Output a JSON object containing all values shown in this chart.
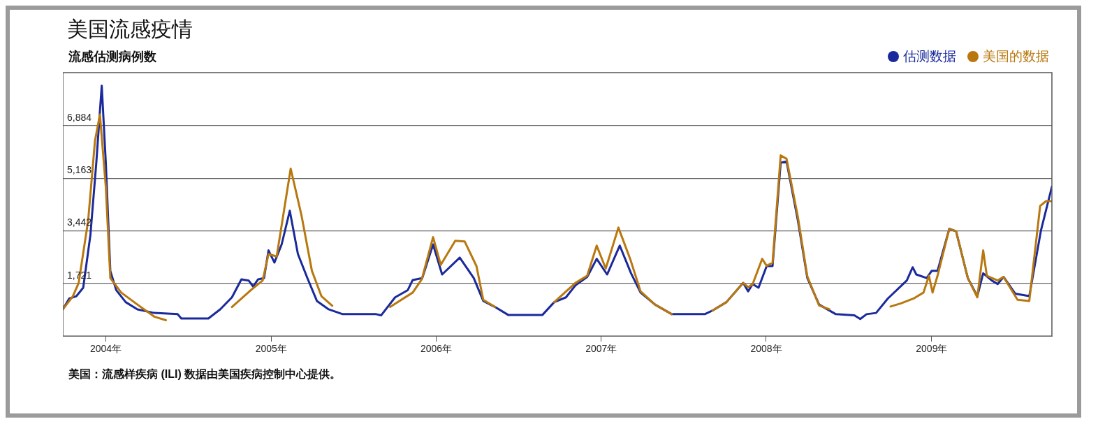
{
  "chart_data": {
    "type": "line",
    "title": "美国流感疫情",
    "ylabel": "流感估测病例数",
    "annotations": [
      "美国：流感样疾病 (ILI) 数据由美国疾病控制中心提供。"
    ],
    "xlim": [
      "2003-09-28",
      "2009-09-24"
    ],
    "xticks": [
      {
        "value": "2004-01-01",
        "label": "2004年"
      },
      {
        "value": "2005-01-01",
        "label": "2005年"
      },
      {
        "value": "2006-01-01",
        "label": "2006年"
      },
      {
        "value": "2007-01-01",
        "label": "2007年"
      },
      {
        "value": "2008-01-01",
        "label": "2008年"
      },
      {
        "value": "2009-01-01",
        "label": "2009年"
      }
    ],
    "ylim": [
      0,
      8620
    ],
    "yticks": [
      {
        "value": 1721,
        "label": "1,721"
      },
      {
        "value": 3442,
        "label": "3,442"
      },
      {
        "value": 5163,
        "label": "5,163"
      },
      {
        "value": 6884,
        "label": "6,884"
      }
    ],
    "grid": "y",
    "legend": "top right",
    "marker": "none",
    "line_style": "solid",
    "series": [
      {
        "name": "估测数据",
        "color": "#1a2a9c",
        "x": [
          "2003-09-28",
          "2003-10-12",
          "2003-10-28",
          "2003-11-12",
          "2003-11-28",
          "2003-12-11",
          "2003-12-23",
          "2004-01-01",
          "2004-01-11",
          "2004-01-24",
          "2004-02-14",
          "2004-03-11",
          "2004-04-17",
          "2004-06-08",
          "2004-06-16",
          "2004-08-15",
          "2004-09-10",
          "2004-10-06",
          "2004-10-27",
          "2004-11-12",
          "2004-11-22",
          "2004-12-03",
          "2004-12-16",
          "2004-12-26",
          "2005-01-08",
          "2005-01-24",
          "2005-02-11",
          "2005-03-01",
          "2005-03-22",
          "2005-04-12",
          "2005-05-08",
          "2005-06-08",
          "2005-08-21",
          "2005-09-01",
          "2005-10-02",
          "2005-10-30",
          "2005-11-10",
          "2005-12-01",
          "2005-12-25",
          "2006-01-14",
          "2006-02-22",
          "2006-03-25",
          "2006-04-15",
          "2006-05-11",
          "2006-06-09",
          "2006-08-24",
          "2006-09-19",
          "2006-10-15",
          "2006-11-05",
          "2006-12-01",
          "2006-12-22",
          "2007-01-14",
          "2007-02-11",
          "2007-03-08",
          "2007-03-29",
          "2007-04-30",
          "2007-06-06",
          "2007-08-18",
          "2007-09-04",
          "2007-10-05",
          "2007-11-11",
          "2007-11-22",
          "2007-12-02",
          "2007-12-15",
          "2008-01-02",
          "2008-01-15",
          "2008-02-02",
          "2008-02-15",
          "2008-03-11",
          "2008-04-01",
          "2008-04-27",
          "2008-06-03",
          "2008-07-14",
          "2008-07-27",
          "2008-08-10",
          "2008-08-31",
          "2008-09-26",
          "2008-11-07",
          "2008-11-20",
          "2008-11-28",
          "2008-12-21",
          "2009-01-01",
          "2009-01-14",
          "2009-02-09",
          "2009-02-24",
          "2009-03-22",
          "2009-04-12",
          "2009-04-25",
          "2009-05-14",
          "2009-05-27",
          "2009-06-09",
          "2009-07-05",
          "2009-08-05",
          "2009-08-31",
          "2009-09-24"
        ],
        "values": [
          874,
          1228,
          1306,
          1582,
          3313,
          5674,
          8193,
          5674,
          2133,
          1503,
          1110,
          874,
          756,
          716,
          575,
          575,
          874,
          1267,
          1857,
          1818,
          1621,
          1857,
          1897,
          2802,
          2408,
          2998,
          4100,
          2683,
          1897,
          1149,
          874,
          716,
          716,
          677,
          1267,
          1503,
          1834,
          1897,
          2998,
          2015,
          2566,
          1897,
          1149,
          952,
          693,
          693,
          1110,
          1267,
          1661,
          1936,
          2526,
          2015,
          2959,
          2054,
          1424,
          1031,
          716,
          716,
          834,
          1110,
          1739,
          1464,
          1700,
          1582,
          2290,
          2290,
          5674,
          5714,
          3785,
          1897,
          1031,
          716,
          677,
          559,
          716,
          756,
          1228,
          1818,
          2251,
          2015,
          1897,
          2133,
          2133,
          3510,
          3431,
          1897,
          1306,
          2054,
          1818,
          1700,
          1936,
          1385,
          1306,
          3471,
          4887
        ]
      },
      {
        "name": "美国的数据",
        "color": "#b8780f",
        "x": [
          "2003-09-28",
          "2003-10-20",
          "2003-11-02",
          "2003-11-23",
          "2003-12-08",
          "2003-12-19",
          "2004-01-01",
          "2004-01-11",
          "2004-02-04",
          "2004-03-11",
          "2004-04-17",
          "2004-05-13",
          "2004-07-01",
          "2004-10-06",
          "2004-11-17",
          "2004-12-13",
          "2004-12-26",
          "2005-01-13",
          "2005-02-13",
          "2005-03-09",
          "2005-04-01",
          "2005-04-22",
          "2005-05-16",
          "2005-07-01",
          "2005-09-21",
          "2005-11-10",
          "2005-11-30",
          "2005-12-25",
          "2006-01-11",
          "2006-02-12",
          "2006-03-05",
          "2006-03-31",
          "2006-04-15",
          "2006-05-11",
          "2006-07-01",
          "2006-09-19",
          "2006-11-05",
          "2006-12-01",
          "2006-12-22",
          "2007-01-11",
          "2007-02-08",
          "2007-03-06",
          "2007-03-29",
          "2007-04-30",
          "2007-06-06",
          "2007-07-15",
          "2007-09-04",
          "2007-10-05",
          "2007-11-11",
          "2007-11-22",
          "2007-12-02",
          "2007-12-23",
          "2008-01-02",
          "2008-01-15",
          "2008-02-02",
          "2008-02-15",
          "2008-03-11",
          "2008-04-01",
          "2008-04-27",
          "2008-05-20",
          "2008-07-01",
          "2008-10-02",
          "2008-10-25",
          "2008-11-22",
          "2008-12-14",
          "2008-12-26",
          "2009-01-03",
          "2009-01-14",
          "2009-02-09",
          "2009-02-24",
          "2009-03-22",
          "2009-04-12",
          "2009-04-25",
          "2009-05-03",
          "2009-05-27",
          "2009-06-09",
          "2009-07-10",
          "2009-08-05",
          "2009-08-29",
          "2009-09-11",
          "2009-09-24"
        ],
        "values": [
          874,
          1300,
          1739,
          3785,
          6383,
          7248,
          4887,
          1897,
          1424,
          1031,
          637,
          519,
          null,
          952,
          1503,
          1818,
          2683,
          2605,
          5478,
          3943,
          2133,
          1306,
          992,
          null,
          952,
          1424,
          1857,
          3235,
          2330,
          3117,
          3093,
          2290,
          1188,
          952,
          null,
          1110,
          1739,
          1975,
          2959,
          2211,
          3549,
          2526,
          1464,
          1031,
          716,
          null,
          834,
          1110,
          1739,
          1600,
          1700,
          2526,
          2300,
          2400,
          5910,
          5800,
          3900,
          1950,
          1000,
          874,
          null,
          968,
          1070,
          1228,
          1424,
          1975,
          1424,
          1975,
          3510,
          3431,
          1897,
          1267,
          2802,
          1975,
          1818,
          1936,
          1188,
          1149,
          4258,
          4415,
          4415
        ]
      }
    ]
  }
}
